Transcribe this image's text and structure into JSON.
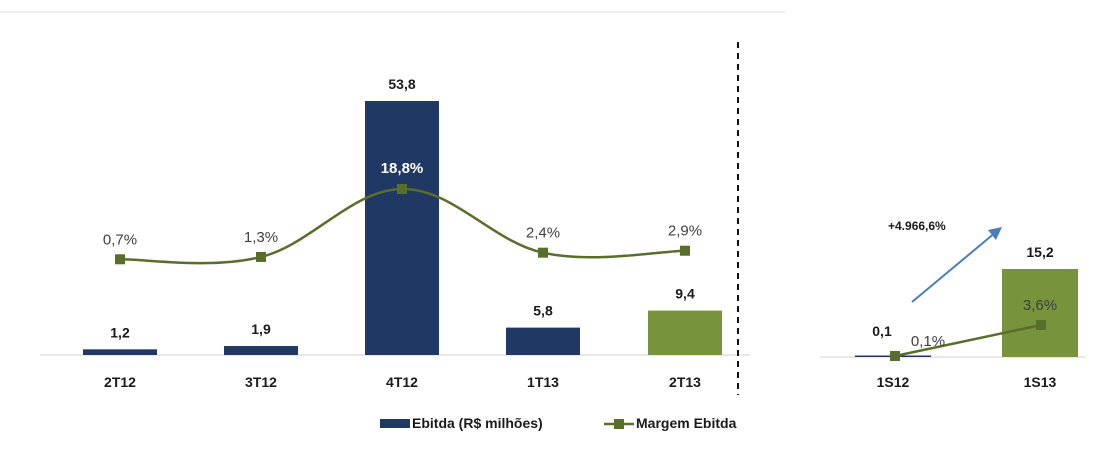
{
  "colors": {
    "ebitda": "#1f3864",
    "ebitda_highlight": "#77933c",
    "margin_line": "#5a6e2b",
    "growth_arrow": "#4a7ebb"
  },
  "legend": {
    "ebitda": "Ebitda (R$ milhões)",
    "margin": "Margem Ebitda"
  },
  "chart_data": [
    {
      "type": "bar",
      "categories": [
        "2T12",
        "3T12",
        "4T12",
        "1T13",
        "2T13"
      ],
      "series": [
        {
          "name": "Ebitda (R$ milhões)",
          "values": [
            1.2,
            1.9,
            53.8,
            5.8,
            9.4
          ],
          "labels": [
            "1,2",
            "1,9",
            "53,8",
            "5,8",
            "9,4"
          ]
        },
        {
          "name": "Margem Ebitda",
          "type": "line",
          "values": [
            0.7,
            1.3,
            18.8,
            2.4,
            2.9
          ],
          "labels": [
            "0,7%",
            "1,3%",
            "18,8%",
            "2,4%",
            "2,9%"
          ]
        }
      ],
      "highlight_index": 4,
      "ylim": [
        0,
        53.8
      ],
      "margin_ylim": [
        0,
        18.8
      ]
    },
    {
      "type": "bar",
      "categories": [
        "1S12",
        "1S13"
      ],
      "series": [
        {
          "name": "Ebitda (R$ milhões)",
          "values": [
            0.1,
            15.2
          ],
          "labels": [
            "0,1",
            "15,2"
          ]
        },
        {
          "name": "Margem Ebitda",
          "type": "line",
          "values": [
            0.1,
            3.6
          ],
          "labels": [
            "0,1%",
            "3,6%"
          ]
        }
      ],
      "highlight_index": 1,
      "growth_label": "+4.966,6%"
    }
  ]
}
